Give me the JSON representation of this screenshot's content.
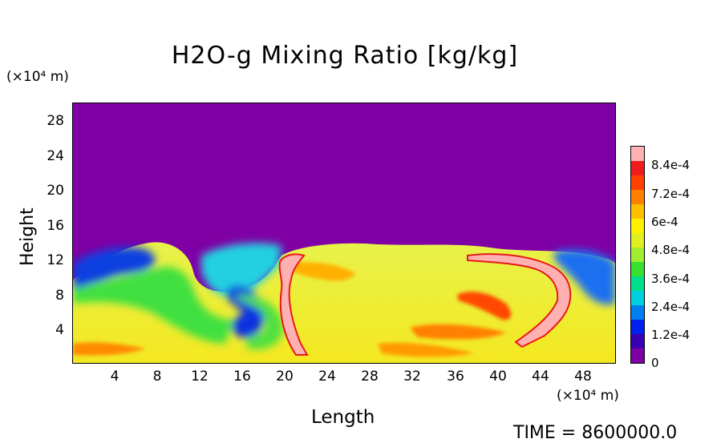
{
  "chart_data": {
    "type": "heatmap",
    "title": "H2O-g Mixing Ratio [kg/kg]",
    "xlabel": "Length",
    "ylabel": "Height",
    "x_unit": "(×10⁴ m)",
    "y_unit": "(×10⁴ m)",
    "xlim": [
      0,
      51
    ],
    "ylim": [
      0,
      30
    ],
    "x_ticks": [
      "4",
      "8",
      "12",
      "16",
      "20",
      "24",
      "28",
      "32",
      "36",
      "40",
      "44",
      "48"
    ],
    "y_ticks": [
      "4",
      "8",
      "12",
      "16",
      "20",
      "24",
      "28"
    ],
    "colorbar": {
      "range": [
        0,
        0.00093
      ],
      "labels": [
        "8.4e-4",
        "7.2e-4",
        "6e-4",
        "4.8e-4",
        "3.6e-4",
        "2.4e-4",
        "1.2e-4",
        "0"
      ],
      "colors": [
        "#7f00a4",
        "#3b00b4",
        "#0020f0",
        "#0080f0",
        "#00d0e0",
        "#00e08a",
        "#38e030",
        "#a0ee30",
        "#e0f020",
        "#fff000",
        "#ffc000",
        "#ff8000",
        "#ff4000",
        "#ee1c1c",
        "#ffb0b0"
      ]
    },
    "footer_text": "TIME = 8600000.0"
  }
}
